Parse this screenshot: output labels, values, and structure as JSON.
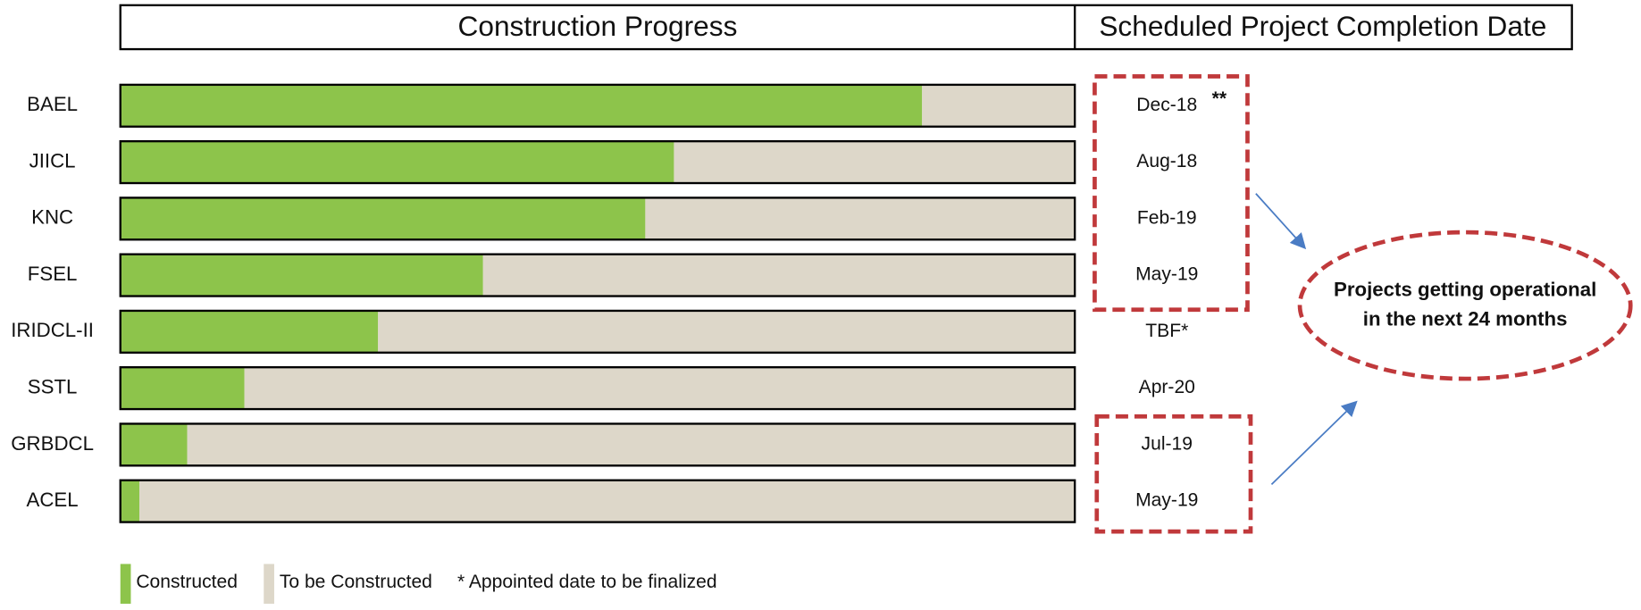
{
  "chart_data": {
    "type": "bar",
    "orientation": "horizontal",
    "stacked": true,
    "headers": [
      "Construction Progress",
      "Scheduled Project Completion Date"
    ],
    "categories": [
      "BAEL",
      "JIICL",
      "KNC",
      "FSEL",
      "IRIDCL-II",
      "SSTL",
      "GRBDCL",
      "ACEL"
    ],
    "series": [
      {
        "name": "Constructed",
        "color": "#8dc44b",
        "values": [
          84,
          58,
          55,
          38,
          27,
          13,
          7,
          2
        ]
      },
      {
        "name": "To be Constructed",
        "color": "#ddd7c9",
        "values": [
          16,
          42,
          45,
          62,
          73,
          87,
          93,
          98
        ]
      }
    ],
    "xlim": [
      0,
      100
    ],
    "completion_dates": [
      "Dec-18",
      "Aug-18",
      "Feb-19",
      "May-19",
      "TBF*",
      "Apr-20",
      "Jul-19",
      "May-19"
    ],
    "date_note": "**",
    "callout": [
      "Projects getting operational",
      "in the next 24 months"
    ],
    "footnote": "* Appointed date to be finalized"
  }
}
